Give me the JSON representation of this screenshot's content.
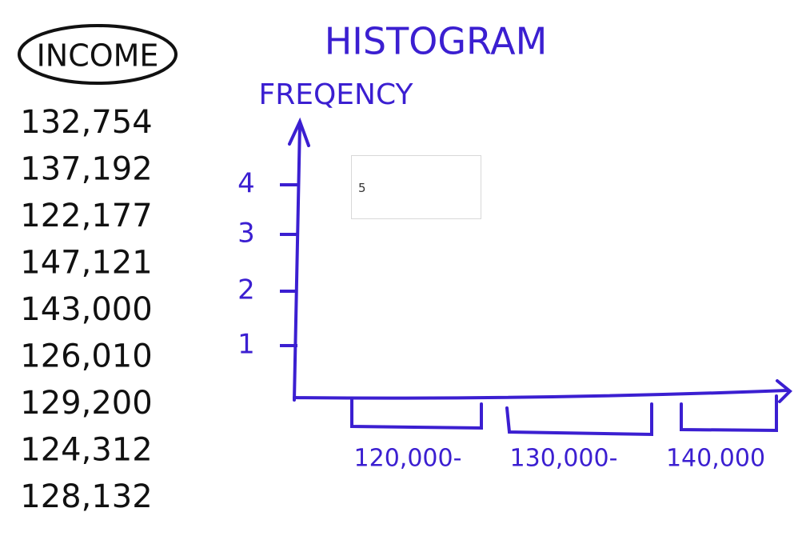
{
  "income": {
    "title": "INCOME",
    "values": [
      "132,754",
      "137,192",
      "122,177",
      "147,121",
      "143,000",
      "126,010",
      "129,200",
      "124,312",
      "128,132"
    ]
  },
  "histogram": {
    "title": "HISTOGRAM",
    "y_axis_label": "FREQENCY",
    "yticks": [
      1,
      2,
      3,
      4
    ],
    "bins": [
      "120,000-",
      "130,000-",
      "140,000"
    ]
  },
  "input": {
    "value": "5"
  }
}
